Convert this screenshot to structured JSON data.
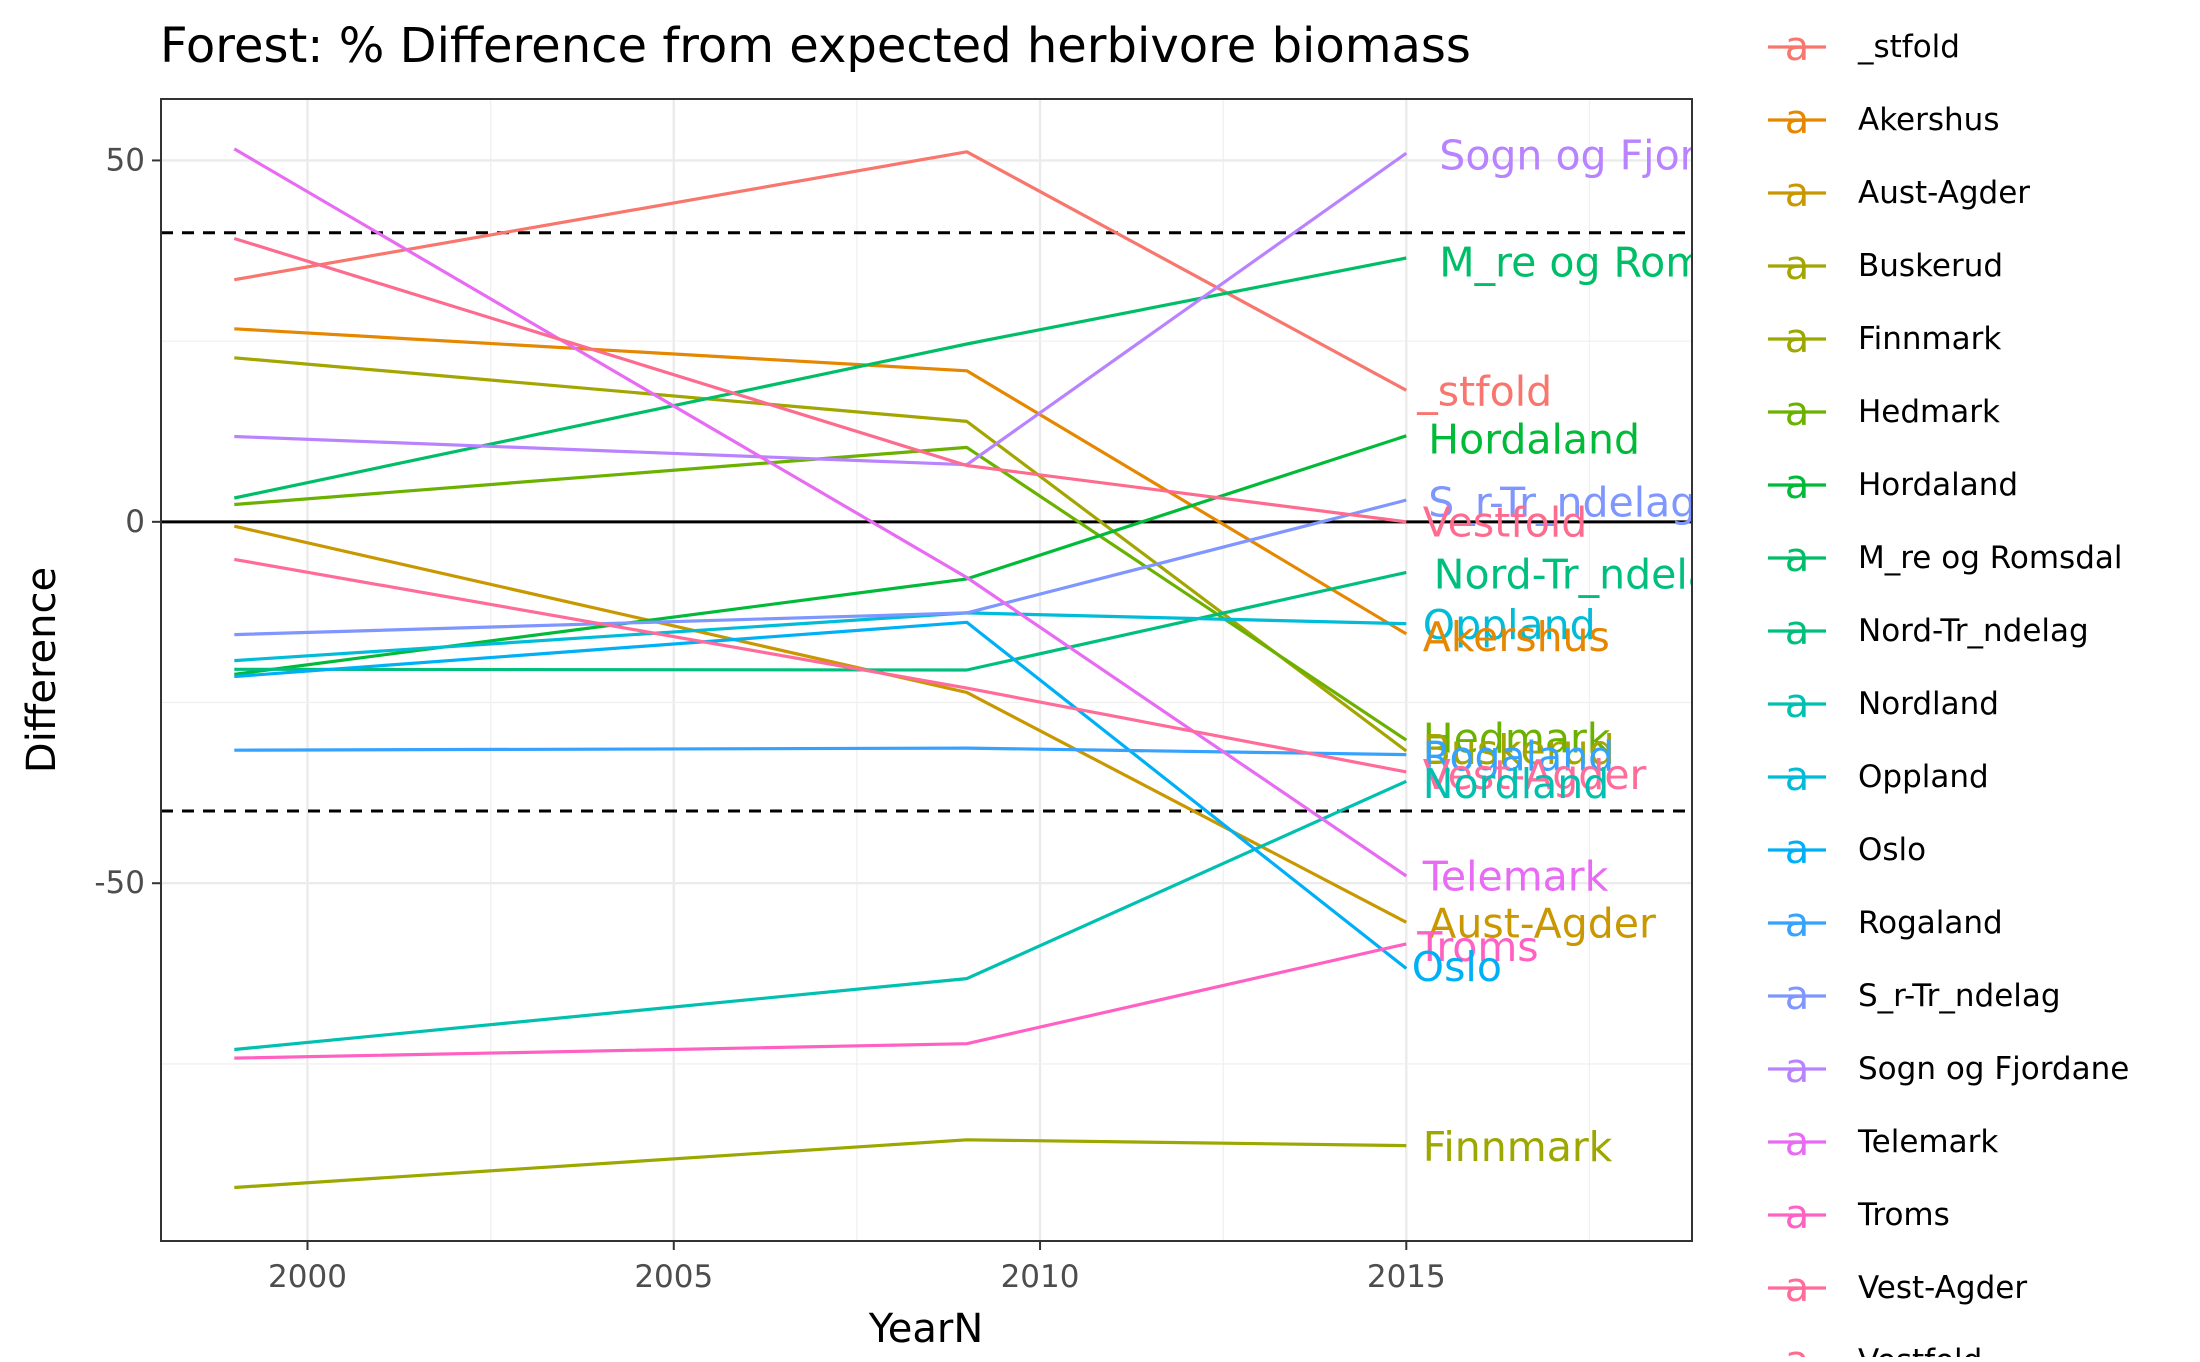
{
  "chart_data": {
    "type": "line",
    "title": "Forest: % Difference from expected herbivore biomass",
    "xlabel": "YearN",
    "ylabel": "Difference",
    "xlim": [
      1998.0,
      2018.9
    ],
    "ylim": [
      -99.5,
      58.5
    ],
    "x_ticks": [
      2000,
      2005,
      2010,
      2015
    ],
    "y_ticks": [
      50,
      0,
      -50
    ],
    "x_tick_labels": [
      "2000",
      "2005",
      "2010",
      "2015"
    ],
    "y_tick_labels": [
      "50",
      "0",
      "-50"
    ],
    "hlines": [
      {
        "y": 40,
        "style": "dashed"
      },
      {
        "y": 0,
        "style": "solid"
      },
      {
        "y": -40,
        "style": "dashed"
      }
    ],
    "grid": true,
    "legend_position": "right",
    "legend_glyph": "a",
    "x": [
      1999,
      2009,
      2015
    ],
    "series": [
      {
        "name": "_stfold",
        "color": "#F8766D",
        "values": [
          33.5,
          51.2,
          18.2
        ]
      },
      {
        "name": "Akershus",
        "color": "#E58700",
        "values": [
          26.7,
          20.9,
          -15.5
        ]
      },
      {
        "name": "Aust-Agder",
        "color": "#C99800",
        "values": [
          -0.6,
          -23.6,
          -55.4
        ]
      },
      {
        "name": "Buskerud",
        "color": "#A3A500",
        "values": [
          22.7,
          13.9,
          -31.7
        ]
      },
      {
        "name": "Finnmark",
        "color": "#9CA700",
        "values": [
          -92.1,
          -85.5,
          -86.3
        ]
      },
      {
        "name": "Hedmark",
        "color": "#6BB100",
        "values": [
          2.4,
          10.3,
          -30.2
        ]
      },
      {
        "name": "Hordaland",
        "color": "#00BA38",
        "values": [
          -21.1,
          -7.9,
          11.9
        ]
      },
      {
        "name": "M_re og Romsdal",
        "color": "#00BE67",
        "values": [
          3.3,
          24.6,
          36.5
        ]
      },
      {
        "name": "Nord-Tr_ndelag",
        "color": "#00BF7D",
        "values": [
          -20.4,
          -20.5,
          -7.0
        ]
      },
      {
        "name": "Nordland",
        "color": "#00C0AF",
        "values": [
          -73.0,
          -63.2,
          -35.9
        ]
      },
      {
        "name": "Oppland",
        "color": "#00BCD8",
        "values": [
          -19.2,
          -12.6,
          -14.1
        ]
      },
      {
        "name": "Oslo",
        "color": "#00B0F6",
        "values": [
          -21.4,
          -13.9,
          -61.8
        ]
      },
      {
        "name": "Rogaland",
        "color": "#35A2FF",
        "values": [
          -31.6,
          -31.3,
          -32.2
        ]
      },
      {
        "name": "S_r-Tr_ndelag",
        "color": "#7F96FF",
        "values": [
          -15.6,
          -12.6,
          3.0
        ]
      },
      {
        "name": "Sogn og Fjordane",
        "color": "#B983FF",
        "values": [
          11.8,
          7.9,
          51.0
        ]
      },
      {
        "name": "Telemark",
        "color": "#E76BF3",
        "values": [
          51.6,
          -7.7,
          -49.0
        ]
      },
      {
        "name": "Troms",
        "color": "#FF61C3",
        "values": [
          -74.2,
          -72.2,
          -58.4
        ]
      },
      {
        "name": "Vest-Agder",
        "color": "#FF6C9A",
        "values": [
          -5.2,
          -23.0,
          -34.6
        ]
      },
      {
        "name": "Vestfold",
        "color": "#FD6B8F",
        "values": [
          39.2,
          7.8,
          0.0
        ]
      }
    ],
    "end_labels": [
      {
        "series": "Sogn og Fjordane",
        "text": "Sogn og Fjordane",
        "y": 50.7,
        "offset": 6
      },
      {
        "series": "M_re og Romsdal",
        "text": "M_re og Romsdal",
        "y": 35.9,
        "offset": 6
      },
      {
        "series": "_stfold",
        "text": "_stfold",
        "y": 18.0,
        "offset": 2
      },
      {
        "series": "Hordaland",
        "text": "Hordaland",
        "y": 11.4,
        "offset": 4
      },
      {
        "series": "S_r-Tr_ndelag",
        "text": "S_r-Tr_ndelag",
        "y": 2.7,
        "offset": 4
      },
      {
        "series": "Vestfold",
        "text": "Vestfold",
        "y": -0.1,
        "offset": 3
      },
      {
        "series": "Nord-Tr_ndelag",
        "text": "Nord-Tr_ndelag",
        "y": -7.3,
        "offset": 5
      },
      {
        "series": "Oppland",
        "text": "Oppland",
        "y": -14.3,
        "offset": 3
      },
      {
        "series": "Akershus",
        "text": "Akershus",
        "y": -15.9,
        "offset": 3
      },
      {
        "series": "Hedmark",
        "text": "Hedmark",
        "y": -30.0,
        "offset": 3
      },
      {
        "series": "Buskerud",
        "text": "Buskerud",
        "y": -31.6,
        "offset": 3
      },
      {
        "series": "Rogaland",
        "text": "Rogaland",
        "y": -32.5,
        "offset": 3
      },
      {
        "series": "Vest-Agder",
        "text": "Vest-Agder",
        "y": -35.0,
        "offset": 3
      },
      {
        "series": "Nordland",
        "text": "Nordland",
        "y": -36.3,
        "offset": 3
      },
      {
        "series": "Telemark",
        "text": "Telemark",
        "y": -49.1,
        "offset": 3
      },
      {
        "series": "Aust-Agder",
        "text": "Aust-Agder",
        "y": -55.6,
        "offset": 4
      },
      {
        "series": "Troms",
        "text": "Troms",
        "y": -58.8,
        "offset": 2
      },
      {
        "series": "Oslo",
        "text": "Oslo",
        "y": -61.6,
        "offset": 1
      },
      {
        "series": "Finnmark",
        "text": "Finnmark",
        "y": -86.5,
        "offset": 3
      }
    ]
  }
}
